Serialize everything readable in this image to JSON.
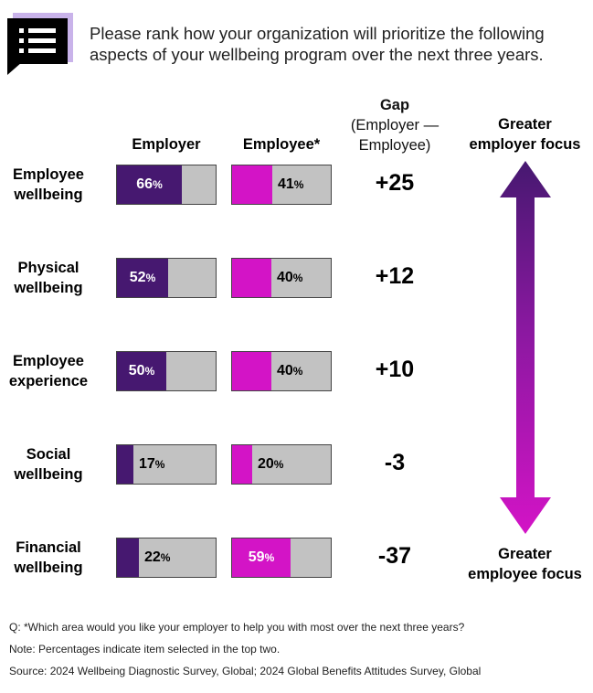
{
  "question": "Please rank how your organization will prioritize the following aspects of your wellbeing program over the next three years.",
  "colors": {
    "employer": "#461870",
    "employee": "#d314c6",
    "empty": "#c2c2c2",
    "text_light": "#ffffff",
    "text_dark": "#000000"
  },
  "chart_data": {
    "type": "bar",
    "orientation": "horizontal",
    "title": "Please rank how your organization will prioritize the following aspects of your wellbeing program over the next three years.",
    "categories": [
      "Employee wellbeing",
      "Physical wellbeing",
      "Employee experience",
      "Social wellbeing",
      "Financial wellbeing"
    ],
    "series": [
      {
        "name": "Employer",
        "values": [
          66,
          52,
          50,
          17,
          22
        ],
        "labels": [
          "66",
          "52",
          "50",
          "17",
          "22"
        ]
      },
      {
        "name": "Employee*",
        "values": [
          41,
          40,
          40,
          20,
          59
        ],
        "labels": [
          "41",
          "40",
          "40",
          "20",
          "59"
        ]
      }
    ],
    "gap": {
      "title": "Gap",
      "subtitle": "(Employer — Employee)",
      "values": [
        "+25",
        "+12",
        "+10",
        "-3",
        "-37"
      ]
    },
    "unit": "%",
    "xlim": [
      0,
      100
    ],
    "arrow": {
      "top_label_1": "Greater",
      "top_label_2": "employer focus",
      "bottom_label_1": "Greater",
      "bottom_label_2": "employee focus"
    }
  },
  "rows": [
    {
      "line1": "Employee",
      "line2": "wellbeing"
    },
    {
      "line1": "Physical",
      "line2": "wellbeing"
    },
    {
      "line1": "Employee",
      "line2": "experience"
    },
    {
      "line1": "Social",
      "line2": "wellbeing"
    },
    {
      "line1": "Financial",
      "line2": "wellbeing"
    }
  ],
  "footnotes": {
    "q": "Q: *Which area would you like your employer to help you with most over the next three years?",
    "note": "Note: Percentages indicate item selected in the top two.",
    "source": "Source: 2024 Wellbeing Diagnostic Survey, Global; 2024 Global Benefits Attitudes Survey, Global"
  }
}
